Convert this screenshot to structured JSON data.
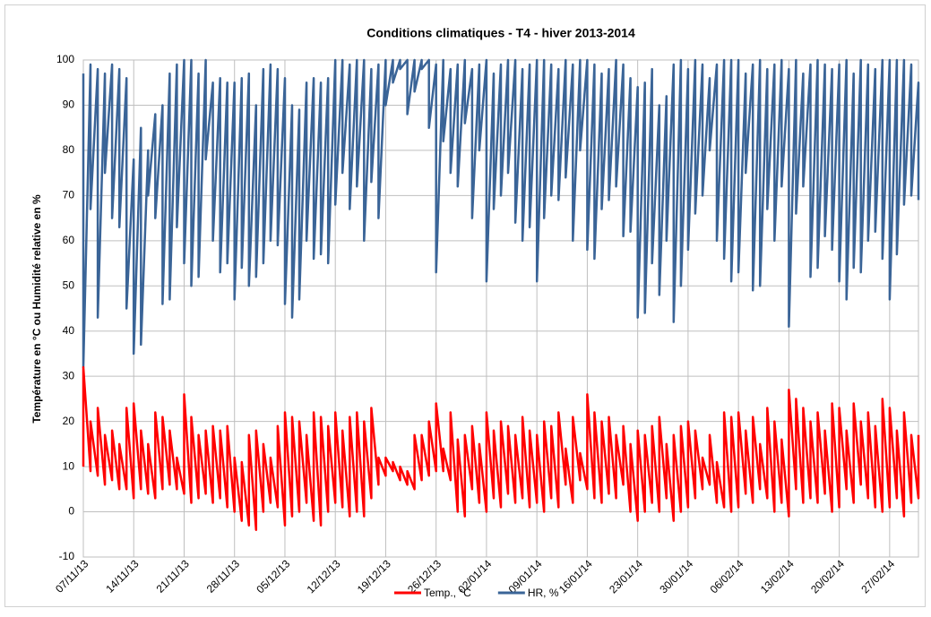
{
  "chart_data": {
    "type": "line",
    "title": "Conditions climatiques - T4 - hiver 2013-2014",
    "y_label": "Température en °C ou Humidité relative en %",
    "xlim": [
      "07/11/13",
      "03/03/14"
    ],
    "xticks": [
      "07/11/13",
      "14/11/13",
      "21/11/13",
      "28/11/13",
      "05/12/13",
      "12/12/13",
      "19/12/13",
      "26/12/13",
      "02/01/14",
      "09/01/14",
      "16/01/14",
      "23/01/14",
      "30/01/14",
      "06/02/14",
      "13/02/14",
      "20/02/14",
      "27/02/14"
    ],
    "ylim": [
      -10,
      100
    ],
    "yticks": [
      -10,
      0,
      10,
      20,
      30,
      40,
      50,
      60,
      70,
      80,
      90,
      100
    ],
    "grid": true,
    "legend": "bottom",
    "x": [
      "07/11/13",
      "07/11/13",
      "08/11/13",
      "08/11/13",
      "09/11/13",
      "09/11/13",
      "10/11/13",
      "10/11/13",
      "11/11/13",
      "11/11/13",
      "12/11/13",
      "12/11/13",
      "13/11/13",
      "13/11/13",
      "14/11/13",
      "14/11/13",
      "15/11/13",
      "15/11/13",
      "16/11/13",
      "16/11/13",
      "17/11/13",
      "17/11/13",
      "18/11/13",
      "18/11/13",
      "19/11/13",
      "19/11/13",
      "20/11/13",
      "20/11/13",
      "21/11/13",
      "21/11/13",
      "22/11/13",
      "22/11/13",
      "23/11/13",
      "23/11/13",
      "24/11/13",
      "24/11/13",
      "25/11/13",
      "25/11/13",
      "26/11/13",
      "26/11/13",
      "27/11/13",
      "27/11/13",
      "28/11/13",
      "28/11/13",
      "29/11/13",
      "29/11/13",
      "30/11/13",
      "30/11/13",
      "01/12/13",
      "01/12/13",
      "02/12/13",
      "02/12/13",
      "03/12/13",
      "03/12/13",
      "04/12/13",
      "04/12/13",
      "05/12/13",
      "05/12/13",
      "06/12/13",
      "06/12/13",
      "07/12/13",
      "07/12/13",
      "08/12/13",
      "08/12/13",
      "09/12/13",
      "09/12/13",
      "10/12/13",
      "10/12/13",
      "11/12/13",
      "11/12/13",
      "12/12/13",
      "12/12/13",
      "13/12/13",
      "13/12/13",
      "14/12/13",
      "14/12/13",
      "15/12/13",
      "15/12/13",
      "16/12/13",
      "16/12/13",
      "17/12/13",
      "17/12/13",
      "18/12/13",
      "18/12/13",
      "19/12/13",
      "19/12/13",
      "20/12/13",
      "20/12/13",
      "21/12/13",
      "21/12/13",
      "22/12/13",
      "22/12/13",
      "23/12/13",
      "23/12/13",
      "24/12/13",
      "24/12/13",
      "25/12/13",
      "25/12/13",
      "26/12/13",
      "26/12/13",
      "27/12/13",
      "27/12/13",
      "28/12/13",
      "28/12/13",
      "29/12/13",
      "29/12/13",
      "30/12/13",
      "30/12/13",
      "31/12/13",
      "31/12/13",
      "01/01/14",
      "01/01/14",
      "02/01/14",
      "02/01/14",
      "03/01/14",
      "03/01/14",
      "04/01/14",
      "04/01/14",
      "05/01/14",
      "05/01/14",
      "06/01/14",
      "06/01/14",
      "07/01/14",
      "07/01/14",
      "08/01/14",
      "08/01/14",
      "09/01/14",
      "09/01/14",
      "10/01/14",
      "10/01/14",
      "11/01/14",
      "11/01/14",
      "12/01/14",
      "12/01/14",
      "13/01/14",
      "13/01/14",
      "14/01/14",
      "14/01/14",
      "15/01/14",
      "15/01/14",
      "16/01/14",
      "16/01/14",
      "17/01/14",
      "17/01/14",
      "18/01/14",
      "18/01/14",
      "19/01/14",
      "19/01/14",
      "20/01/14",
      "20/01/14",
      "21/01/14",
      "21/01/14",
      "22/01/14",
      "22/01/14",
      "23/01/14",
      "23/01/14",
      "24/01/14",
      "24/01/14",
      "25/01/14",
      "25/01/14",
      "26/01/14",
      "26/01/14",
      "27/01/14",
      "27/01/14",
      "28/01/14",
      "28/01/14",
      "29/01/14",
      "29/01/14",
      "30/01/14",
      "30/01/14",
      "31/01/14",
      "31/01/14",
      "01/02/14",
      "01/02/14",
      "02/02/14",
      "02/02/14",
      "03/02/14",
      "03/02/14",
      "04/02/14",
      "04/02/14",
      "05/02/14",
      "05/02/14",
      "06/02/14",
      "06/02/14",
      "07/02/14",
      "07/02/14",
      "08/02/14",
      "08/02/14",
      "09/02/14",
      "09/02/14",
      "10/02/14",
      "10/02/14",
      "11/02/14",
      "11/02/14",
      "12/02/14",
      "12/02/14",
      "13/02/14",
      "13/02/14",
      "14/02/14",
      "14/02/14",
      "15/02/14",
      "15/02/14",
      "16/02/14",
      "16/02/14",
      "17/02/14",
      "17/02/14",
      "18/02/14",
      "18/02/14",
      "19/02/14",
      "19/02/14",
      "20/02/14",
      "20/02/14",
      "21/02/14",
      "21/02/14",
      "22/02/14",
      "22/02/14",
      "23/02/14",
      "23/02/14",
      "24/02/14",
      "24/02/14",
      "25/02/14",
      "25/02/14",
      "26/02/14",
      "26/02/14",
      "27/02/14",
      "27/02/14",
      "28/02/14",
      "28/02/14",
      "01/03/14",
      "01/03/14",
      "02/03/14",
      "02/03/14",
      "03/03/14",
      "03/03/14"
    ],
    "series": [
      {
        "name": "Temp., °C",
        "color": "#ff0000",
        "values": [
          10,
          32,
          9,
          20,
          8,
          23,
          6,
          17,
          7,
          18,
          5,
          15,
          5,
          23,
          3,
          24,
          5,
          18,
          4,
          15,
          3,
          22,
          5,
          21,
          6,
          18,
          5,
          12,
          4,
          26,
          2,
          21,
          3,
          17,
          4,
          18,
          2,
          19,
          3,
          18,
          1,
          19,
          0,
          12,
          -2,
          11,
          -3,
          17,
          -4,
          18,
          0,
          15,
          2,
          12,
          1,
          19,
          -3,
          22,
          -1,
          21,
          0,
          20,
          2,
          17,
          -2,
          22,
          -3,
          21,
          0,
          19,
          2,
          22,
          1,
          18,
          -1,
          21,
          0,
          22,
          -1,
          20,
          3,
          23,
          6,
          12,
          8,
          12,
          9,
          11,
          7,
          10,
          6,
          9,
          5,
          17,
          7,
          17,
          8,
          20,
          9,
          24,
          9,
          14,
          7,
          22,
          0,
          16,
          -1,
          17,
          5,
          19,
          2,
          15,
          0,
          22,
          3,
          18,
          1,
          20,
          4,
          19,
          2,
          17,
          3,
          21,
          1,
          18,
          2,
          17,
          0,
          20,
          3,
          19,
          1,
          22,
          6,
          14,
          2,
          21,
          7,
          13,
          5,
          26,
          3,
          22,
          2,
          20,
          4,
          21,
          3,
          17,
          6,
          19,
          0,
          15,
          -2,
          18,
          0,
          17,
          2,
          19,
          0,
          21,
          3,
          15,
          -2,
          17,
          0,
          19,
          1,
          20,
          3,
          18,
          5,
          12,
          6,
          17,
          2,
          11,
          1,
          22,
          0,
          21,
          1,
          22,
          4,
          18,
          2,
          21,
          5,
          15,
          3,
          23,
          0,
          20,
          2,
          16,
          -1,
          27,
          5,
          25,
          2,
          23,
          3,
          20,
          2,
          22,
          4,
          18,
          0,
          24,
          1,
          23,
          5,
          18,
          2,
          24,
          6,
          20,
          3,
          22,
          1,
          19,
          0,
          25,
          1,
          23,
          3,
          18,
          -1,
          22,
          2,
          17,
          3,
          17
        ]
      },
      {
        "name": "HR, %",
        "color": "#3a6497",
        "values": [
          97,
          32,
          99,
          67,
          98,
          43,
          97,
          75,
          99,
          65,
          98,
          63,
          96,
          45,
          78,
          35,
          85,
          37,
          80,
          70,
          88,
          65,
          90,
          46,
          97,
          47,
          99,
          63,
          100,
          55,
          100,
          50,
          97,
          52,
          100,
          78,
          95,
          60,
          96,
          53,
          95,
          55,
          95,
          47,
          96,
          54,
          97,
          50,
          90,
          52,
          98,
          55,
          99,
          60,
          98,
          59,
          96,
          46,
          90,
          43,
          89,
          47,
          95,
          60,
          96,
          56,
          95,
          57,
          96,
          55,
          100,
          68,
          100,
          75,
          99,
          67,
          100,
          72,
          100,
          60,
          98,
          73,
          99,
          65,
          100,
          90,
          100,
          95,
          100,
          98,
          100,
          88,
          100,
          93,
          100,
          98,
          100,
          85,
          99,
          53,
          100,
          82,
          98,
          75,
          99,
          72,
          100,
          86,
          98,
          65,
          99,
          80,
          100,
          51,
          97,
          67,
          99,
          70,
          100,
          75,
          100,
          64,
          98,
          60,
          99,
          63,
          100,
          51,
          100,
          65,
          99,
          70,
          98,
          69,
          100,
          74,
          99,
          60,
          100,
          80,
          100,
          58,
          99,
          56,
          97,
          67,
          98,
          69,
          100,
          72,
          99,
          61,
          96,
          62,
          94,
          43,
          95,
          44,
          98,
          55,
          90,
          48,
          92,
          60,
          99,
          42,
          100,
          50,
          98,
          58,
          100,
          66,
          99,
          70,
          96,
          80,
          99,
          60,
          100,
          56,
          100,
          51,
          100,
          53,
          97,
          75,
          99,
          49,
          100,
          50,
          98,
          67,
          99,
          60,
          100,
          72,
          98,
          41,
          100,
          66,
          97,
          72,
          99,
          52,
          100,
          54,
          99,
          61,
          98,
          58,
          99,
          51,
          100,
          47,
          97,
          54,
          100,
          53,
          99,
          60,
          98,
          62,
          100,
          56,
          100,
          47,
          100,
          57,
          100,
          68,
          99,
          70,
          95,
          69
        ]
      }
    ]
  }
}
